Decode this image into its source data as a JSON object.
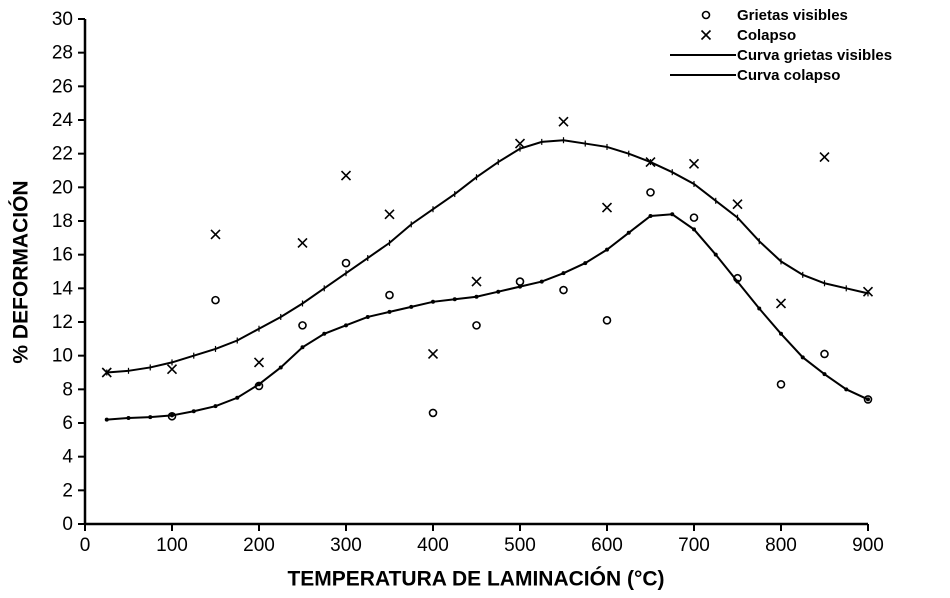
{
  "chart_data": {
    "type": "scatter",
    "x_label": "TEMPERATURA DE LAMINACIÓN (°C)",
    "y_label": "% DEFORMACIÓN",
    "xlim": [
      0,
      900
    ],
    "ylim": [
      0,
      30
    ],
    "xticks": [
      0,
      100,
      200,
      300,
      400,
      500,
      600,
      700,
      800,
      900
    ],
    "yticks": [
      0,
      2,
      4,
      6,
      8,
      10,
      12,
      14,
      16,
      18,
      20,
      22,
      24,
      26,
      28,
      30
    ],
    "legend_position": "upper right",
    "series": [
      {
        "name": "Grietas visibles",
        "color": "#000000",
        "mode": "markers",
        "marker": "circle",
        "x": [
          100,
          150,
          200,
          250,
          300,
          350,
          400,
          450,
          500,
          550,
          600,
          650,
          700,
          750,
          800,
          850,
          900
        ],
        "values": [
          6.4,
          13.3,
          8.2,
          11.8,
          15.5,
          13.6,
          6.6,
          11.8,
          14.4,
          13.9,
          12.1,
          19.7,
          18.2,
          14.6,
          8.3,
          10.1,
          7.4
        ]
      },
      {
        "name": "Colapso",
        "color": "#000000",
        "mode": "markers",
        "marker": "x",
        "x": [
          25,
          100,
          150,
          200,
          250,
          300,
          350,
          400,
          450,
          500,
          550,
          600,
          650,
          700,
          750,
          800,
          850,
          900
        ],
        "values": [
          9.0,
          9.2,
          17.2,
          9.6,
          16.7,
          20.7,
          18.4,
          10.1,
          14.4,
          22.6,
          23.9,
          18.8,
          21.5,
          21.4,
          19.0,
          13.1,
          21.8,
          13.8
        ]
      },
      {
        "name": "Curva grietas visibles",
        "color": "#000000",
        "mode": "lines",
        "marker": "dot",
        "x": [
          25,
          50,
          75,
          100,
          125,
          150,
          175,
          200,
          225,
          250,
          275,
          300,
          325,
          350,
          375,
          400,
          425,
          450,
          475,
          500,
          525,
          550,
          575,
          600,
          625,
          650,
          675,
          700,
          725,
          750,
          775,
          800,
          825,
          850,
          875,
          900
        ],
        "values": [
          6.2,
          6.3,
          6.35,
          6.45,
          6.7,
          7.0,
          7.5,
          8.3,
          9.3,
          10.5,
          11.3,
          11.8,
          12.3,
          12.6,
          12.9,
          13.2,
          13.35,
          13.5,
          13.8,
          14.1,
          14.4,
          14.9,
          15.5,
          16.3,
          17.3,
          18.3,
          18.4,
          17.5,
          16.0,
          14.4,
          12.8,
          11.3,
          9.9,
          8.9,
          8.0,
          7.4
        ]
      },
      {
        "name": "Curva colapso",
        "color": "#000000",
        "mode": "lines",
        "marker": "tick",
        "x": [
          25,
          50,
          75,
          100,
          125,
          150,
          175,
          200,
          225,
          250,
          275,
          300,
          325,
          350,
          375,
          400,
          425,
          450,
          475,
          500,
          525,
          550,
          575,
          600,
          625,
          650,
          675,
          700,
          725,
          750,
          775,
          800,
          825,
          850,
          875,
          900
        ],
        "values": [
          9.0,
          9.1,
          9.3,
          9.6,
          10.0,
          10.4,
          10.9,
          11.6,
          12.3,
          13.1,
          14.0,
          14.9,
          15.8,
          16.7,
          17.8,
          18.7,
          19.6,
          20.6,
          21.5,
          22.3,
          22.7,
          22.8,
          22.6,
          22.4,
          22.0,
          21.5,
          20.9,
          20.2,
          19.2,
          18.2,
          16.8,
          15.6,
          14.8,
          14.3,
          14.0,
          13.7
        ]
      }
    ]
  }
}
